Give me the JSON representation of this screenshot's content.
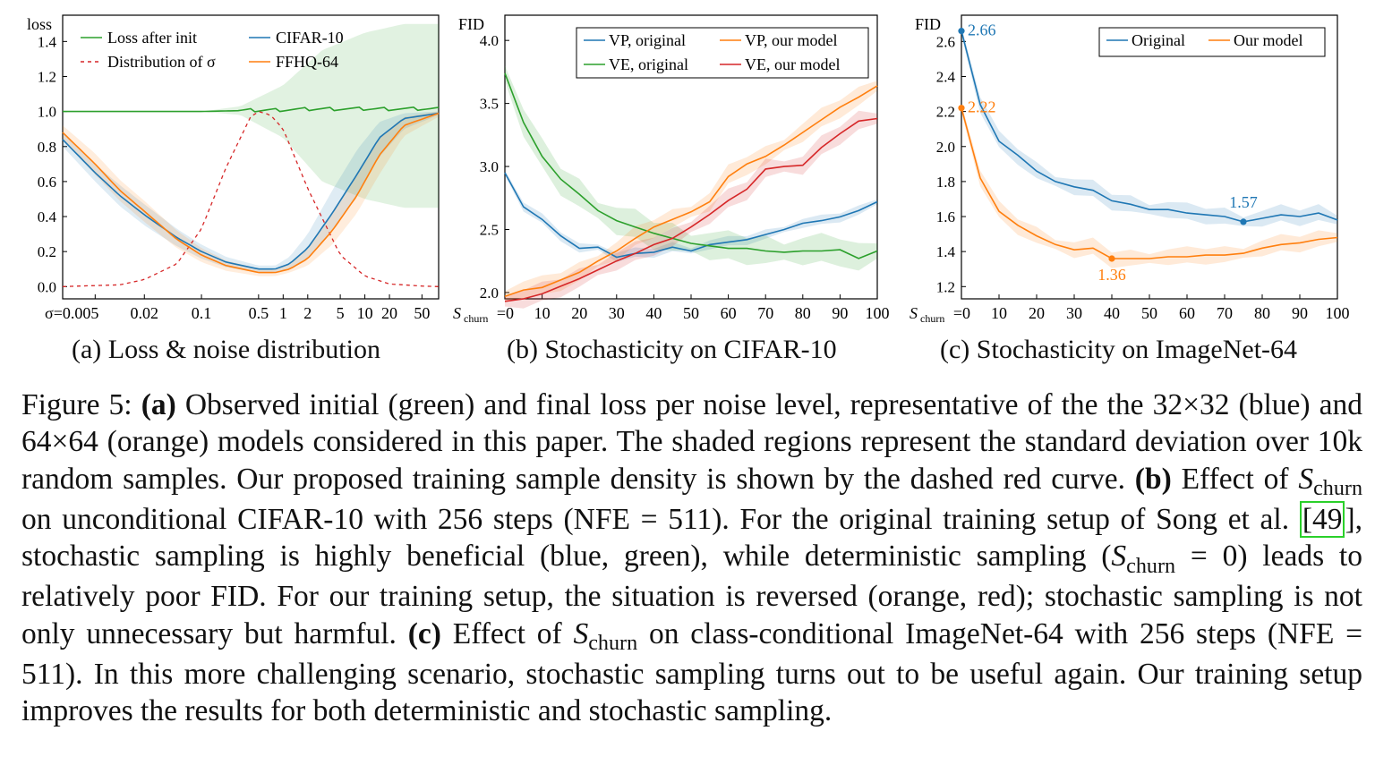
{
  "panels": [
    {
      "letter": "(a)",
      "caption": "(a) Loss & noise distribution"
    },
    {
      "letter": "(b)",
      "caption": "(b) Stochasticity on CIFAR-10"
    },
    {
      "letter": "(c)",
      "caption": "(c) Stochasticity on ImageNet-64"
    }
  ],
  "colors": {
    "blue": "#1f77b4",
    "orange": "#ff7f0e",
    "green": "#2ca02c",
    "red": "#d62728"
  },
  "chart_data": [
    {
      "type": "line",
      "ylabel": "loss",
      "xscale": "log",
      "x_tick_labels": [
        "σ=0.005",
        "0.02",
        "0.1",
        "0.5",
        "1",
        "2",
        "5",
        "10",
        "20",
        "50"
      ],
      "x_tick_values": [
        0.005,
        0.02,
        0.1,
        0.5,
        1,
        2,
        5,
        10,
        20,
        50
      ],
      "xlim": [
        0.002,
        80
      ],
      "ylim": [
        -0.07,
        1.55
      ],
      "y_tick_labels": [
        "0.0",
        "0.2",
        "0.4",
        "0.6",
        "0.8",
        "1.0",
        "1.2",
        "1.4"
      ],
      "y_tick_values": [
        0,
        0.2,
        0.4,
        0.6,
        0.8,
        1.0,
        1.2,
        1.4
      ],
      "legend": [
        "Loss after init",
        "Distribution of σ",
        "CIFAR-10",
        "FFHQ-64"
      ],
      "legend_placement": "top",
      "series": [
        {
          "name": "Loss after init",
          "color": "green",
          "dash": false,
          "x": [
            0.002,
            0.01,
            0.1,
            0.3,
            1,
            3,
            10,
            30,
            80
          ],
          "y": [
            1.0,
            1.0,
            1.0,
            1.005,
            1.01,
            1.015,
            1.015,
            1.015,
            1.015
          ],
          "band_upper": [
            1.0,
            1.0,
            1.0,
            1.03,
            1.15,
            1.35,
            1.45,
            1.5,
            1.5
          ],
          "band_lower": [
            1.0,
            1.0,
            1.0,
            0.98,
            0.85,
            0.6,
            0.5,
            0.45,
            0.45
          ]
        },
        {
          "name": "Distribution of σ",
          "color": "red",
          "dash": true,
          "x": [
            0.002,
            0.01,
            0.02,
            0.05,
            0.1,
            0.2,
            0.4,
            0.5,
            0.7,
            1,
            2,
            5,
            10,
            20,
            50,
            80
          ],
          "y": [
            0,
            0.01,
            0.04,
            0.13,
            0.33,
            0.68,
            0.97,
            1.0,
            0.98,
            0.9,
            0.56,
            0.18,
            0.06,
            0.015,
            0.003,
            0
          ]
        },
        {
          "name": "CIFAR-10",
          "color": "blue",
          "dash": false,
          "x": [
            0.002,
            0.005,
            0.01,
            0.02,
            0.05,
            0.1,
            0.2,
            0.5,
            0.8,
            1.2,
            2,
            4,
            8,
            15,
            30,
            80
          ],
          "y": [
            0.84,
            0.65,
            0.52,
            0.41,
            0.28,
            0.2,
            0.14,
            0.1,
            0.1,
            0.13,
            0.22,
            0.42,
            0.64,
            0.85,
            0.96,
            0.99
          ],
          "band_upper": [
            0.88,
            0.7,
            0.58,
            0.47,
            0.33,
            0.24,
            0.17,
            0.12,
            0.12,
            0.17,
            0.3,
            0.55,
            0.78,
            0.94,
            0.99,
            1.0
          ],
          "band_lower": [
            0.8,
            0.6,
            0.46,
            0.35,
            0.23,
            0.16,
            0.11,
            0.08,
            0.08,
            0.1,
            0.16,
            0.32,
            0.52,
            0.74,
            0.9,
            0.98
          ]
        },
        {
          "name": "FFHQ-64",
          "color": "orange",
          "dash": false,
          "x": [
            0.002,
            0.005,
            0.01,
            0.02,
            0.05,
            0.1,
            0.2,
            0.5,
            0.8,
            1.2,
            2,
            4,
            8,
            15,
            30,
            80
          ],
          "y": [
            0.88,
            0.7,
            0.55,
            0.43,
            0.27,
            0.18,
            0.12,
            0.08,
            0.08,
            0.1,
            0.16,
            0.32,
            0.52,
            0.75,
            0.92,
            0.99
          ],
          "band_upper": [
            0.92,
            0.76,
            0.61,
            0.49,
            0.32,
            0.22,
            0.15,
            0.1,
            0.1,
            0.13,
            0.22,
            0.42,
            0.64,
            0.85,
            0.97,
            1.0
          ],
          "band_lower": [
            0.84,
            0.64,
            0.49,
            0.37,
            0.22,
            0.14,
            0.09,
            0.06,
            0.06,
            0.08,
            0.12,
            0.24,
            0.42,
            0.64,
            0.86,
            0.97
          ]
        }
      ]
    },
    {
      "type": "line",
      "ylabel": "FID",
      "xlabel_prefix": "S",
      "xlabel_sub": "churn",
      "x_tick_labels": [
        "=0",
        "10",
        "20",
        "30",
        "40",
        "50",
        "60",
        "70",
        "80",
        "90",
        "100"
      ],
      "x_tick_values": [
        0,
        10,
        20,
        30,
        40,
        50,
        60,
        70,
        80,
        90,
        100
      ],
      "xlim": [
        0,
        100
      ],
      "ylim": [
        1.95,
        4.2
      ],
      "y_tick_labels": [
        "2.0",
        "2.5",
        "3.0",
        "3.5",
        "4.0"
      ],
      "y_tick_values": [
        2.0,
        2.5,
        3.0,
        3.5,
        4.0
      ],
      "legend": [
        "VP, original",
        "VP, our model",
        "VE, original",
        "VE, our model"
      ],
      "legend_placement": "top-right",
      "x": [
        0,
        5,
        10,
        15,
        20,
        25,
        30,
        35,
        40,
        45,
        50,
        55,
        60,
        65,
        70,
        75,
        80,
        85,
        90,
        95,
        100
      ],
      "series": [
        {
          "name": "VP, original",
          "color": "blue",
          "y": [
            2.95,
            2.68,
            2.58,
            2.45,
            2.35,
            2.36,
            2.28,
            2.31,
            2.32,
            2.36,
            2.33,
            2.38,
            2.4,
            2.42,
            2.46,
            2.5,
            2.55,
            2.57,
            2.6,
            2.65,
            2.72
          ],
          "band": 0.02
        },
        {
          "name": "VE, original",
          "color": "green",
          "y": [
            3.74,
            3.35,
            3.08,
            2.9,
            2.78,
            2.65,
            2.57,
            2.52,
            2.47,
            2.43,
            2.39,
            2.37,
            2.35,
            2.35,
            2.33,
            2.32,
            2.33,
            2.33,
            2.34,
            2.27,
            2.33
          ],
          "band": 0.06
        },
        {
          "name": "VP, our model",
          "color": "orange",
          "y": [
            1.97,
            2.02,
            2.04,
            2.1,
            2.16,
            2.25,
            2.33,
            2.43,
            2.52,
            2.58,
            2.64,
            2.72,
            2.92,
            3.02,
            3.08,
            3.17,
            3.27,
            3.37,
            3.47,
            3.55,
            3.64
          ],
          "band": 0.04
        },
        {
          "name": "VE, our model",
          "color": "red",
          "y": [
            1.93,
            1.95,
            1.99,
            2.05,
            2.11,
            2.18,
            2.25,
            2.31,
            2.38,
            2.43,
            2.52,
            2.62,
            2.73,
            2.82,
            2.98,
            3.0,
            3.01,
            3.15,
            3.26,
            3.36,
            3.38
          ],
          "band": 0.04
        }
      ]
    },
    {
      "type": "line",
      "ylabel": "FID",
      "xlabel_prefix": "S",
      "xlabel_sub": "churn",
      "x_tick_labels": [
        "=0",
        "10",
        "20",
        "30",
        "40",
        "50",
        "60",
        "70",
        "80",
        "90",
        "100"
      ],
      "x_tick_values": [
        0,
        10,
        20,
        30,
        40,
        50,
        60,
        70,
        80,
        90,
        100
      ],
      "xlim": [
        0,
        100
      ],
      "ylim": [
        1.13,
        2.75
      ],
      "y_tick_labels": [
        "1.2",
        "1.4",
        "1.6",
        "1.8",
        "2.0",
        "2.2",
        "2.4",
        "2.6"
      ],
      "y_tick_values": [
        1.2,
        1.4,
        1.6,
        1.8,
        2.0,
        2.2,
        2.4,
        2.6
      ],
      "legend": [
        "Original",
        "Our model"
      ],
      "legend_placement": "top-right",
      "x": [
        0,
        5,
        10,
        15,
        20,
        25,
        30,
        35,
        40,
        45,
        50,
        55,
        60,
        65,
        70,
        75,
        80,
        85,
        90,
        95,
        100
      ],
      "series": [
        {
          "name": "Original",
          "color": "blue",
          "y": [
            2.66,
            2.24,
            2.03,
            1.95,
            1.86,
            1.8,
            1.77,
            1.75,
            1.69,
            1.67,
            1.64,
            1.64,
            1.62,
            1.61,
            1.6,
            1.57,
            1.59,
            1.61,
            1.6,
            1.62,
            1.58
          ],
          "band": 0.025
        },
        {
          "name": "Our model",
          "color": "orange",
          "y": [
            2.22,
            1.82,
            1.63,
            1.55,
            1.49,
            1.44,
            1.41,
            1.42,
            1.36,
            1.36,
            1.36,
            1.37,
            1.37,
            1.38,
            1.38,
            1.39,
            1.42,
            1.44,
            1.45,
            1.47,
            1.48
          ],
          "band": 0.025
        }
      ],
      "annotations": [
        {
          "label": "2.66",
          "series": "Original",
          "x": 0,
          "y": 2.66
        },
        {
          "label": "2.22",
          "series": "Our model",
          "x": 0,
          "y": 2.22
        },
        {
          "label": "1.57",
          "series": "Original",
          "x": 75,
          "y": 1.57
        },
        {
          "label": "1.36",
          "series": "Our model",
          "x": 40,
          "y": 1.36
        }
      ]
    }
  ],
  "caption": {
    "figure_label": "Figure 5:",
    "a_label": "(a)",
    "a_text": " Observed initial (green) and final loss per noise level, representative of the the 32×32 (blue) and 64×64 (orange) models considered in this paper. The shaded regions represent the standard deviation over 10k random samples. Our proposed training sample density is shown by the dashed red curve. ",
    "b_label": "(b)",
    "b_text_1": " Effect of ",
    "s_letter": "S",
    "s_sub": "churn",
    "b_text_2": " on unconditional CIFAR-10 with 256 steps (NFE = 511). For the original training setup of Song et al. ",
    "cite_open": "[",
    "cite_num": "49",
    "cite_close": "]",
    "b_text_3": ", stochastic sampling is highly beneficial (blue, green), while deterministic sampling (",
    "b_text_4": " = 0) leads to relatively poor FID. For our training setup, the situation is reversed (orange, red); stochastic sampling is not only unnecessary but harmful. ",
    "c_label": "(c)",
    "c_text_1": " Effect of ",
    "c_text_2": " on class-conditional ImageNet-64 with 256 steps (NFE = 511). In this more challenging scenario, stochastic sampling turns out to be useful again. Our training setup improves the results for both deterministic and stochastic sampling."
  }
}
